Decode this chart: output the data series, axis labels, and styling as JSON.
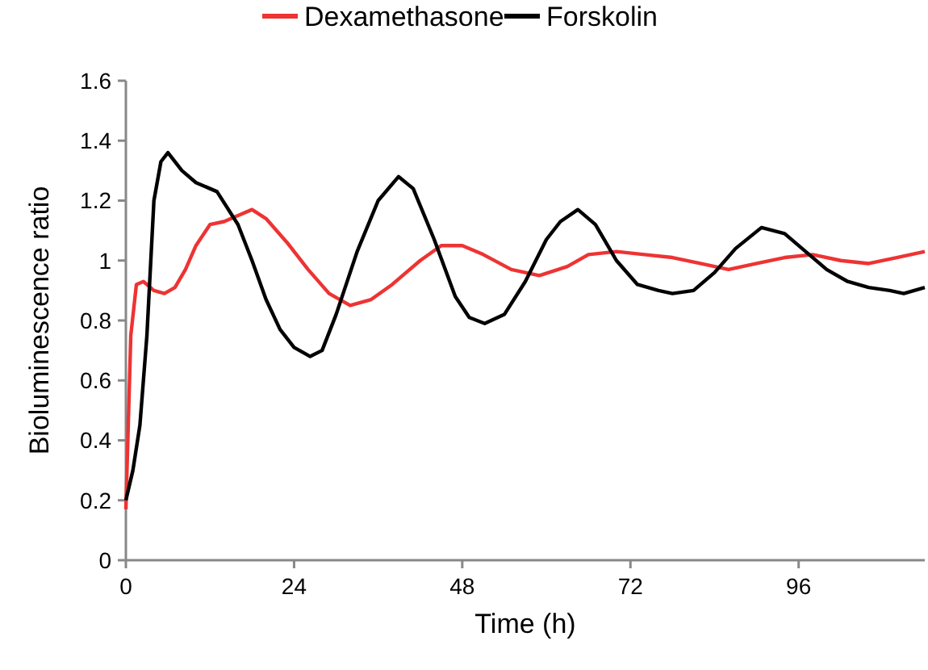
{
  "chart_data": {
    "type": "line",
    "xlabel": "Time (h)",
    "ylabel": "Bioluminescence  ratio",
    "xlim": [
      0,
      114
    ],
    "xticks": [
      0,
      24,
      48,
      72,
      96
    ],
    "ylim": [
      0,
      1.6
    ],
    "yticks": [
      0,
      0.2,
      0.4,
      0.6,
      0.8,
      1,
      1.2,
      1.4,
      1.6
    ],
    "legend": "top",
    "grid": false,
    "series": [
      {
        "name": "Dexamethasone",
        "color": "#ee3333",
        "x": [
          0,
          0.7,
          1.5,
          2.5,
          4,
          5.5,
          7,
          8.5,
          10,
          12,
          14,
          16,
          18,
          20,
          23,
          26,
          29,
          32,
          35,
          38,
          42,
          45,
          48,
          51,
          55,
          59,
          63,
          66,
          70,
          74,
          78,
          82,
          86,
          90,
          94,
          98,
          102,
          106,
          110,
          114
        ],
        "values": [
          0.17,
          0.75,
          0.92,
          0.93,
          0.9,
          0.89,
          0.91,
          0.97,
          1.05,
          1.12,
          1.13,
          1.15,
          1.17,
          1.14,
          1.06,
          0.97,
          0.89,
          0.85,
          0.87,
          0.92,
          1.0,
          1.05,
          1.05,
          1.02,
          0.97,
          0.95,
          0.98,
          1.02,
          1.03,
          1.02,
          1.01,
          0.99,
          0.97,
          0.99,
          1.01,
          1.02,
          1.0,
          0.99,
          1.01,
          1.03
        ]
      },
      {
        "name": "Forskolin",
        "color": "#000000",
        "x": [
          0,
          1,
          2,
          3,
          4,
          5,
          6,
          8,
          10,
          13,
          16,
          18,
          20,
          22,
          24,
          26.3,
          28,
          30,
          33,
          36,
          38.9,
          41,
          44,
          47,
          49,
          51.2,
          54,
          57,
          60,
          62,
          64.5,
          67,
          70,
          73,
          76,
          78,
          81,
          84,
          87,
          90.7,
          94,
          97,
          100,
          103,
          106,
          109,
          111,
          114
        ],
        "values": [
          0.2,
          0.3,
          0.45,
          0.75,
          1.2,
          1.33,
          1.36,
          1.3,
          1.26,
          1.23,
          1.12,
          1.0,
          0.87,
          0.77,
          0.71,
          0.68,
          0.7,
          0.82,
          1.03,
          1.2,
          1.28,
          1.24,
          1.07,
          0.88,
          0.81,
          0.79,
          0.82,
          0.93,
          1.07,
          1.13,
          1.17,
          1.12,
          1.0,
          0.92,
          0.9,
          0.89,
          0.9,
          0.96,
          1.04,
          1.11,
          1.09,
          1.03,
          0.97,
          0.93,
          0.91,
          0.9,
          0.89,
          0.91
        ]
      }
    ]
  }
}
